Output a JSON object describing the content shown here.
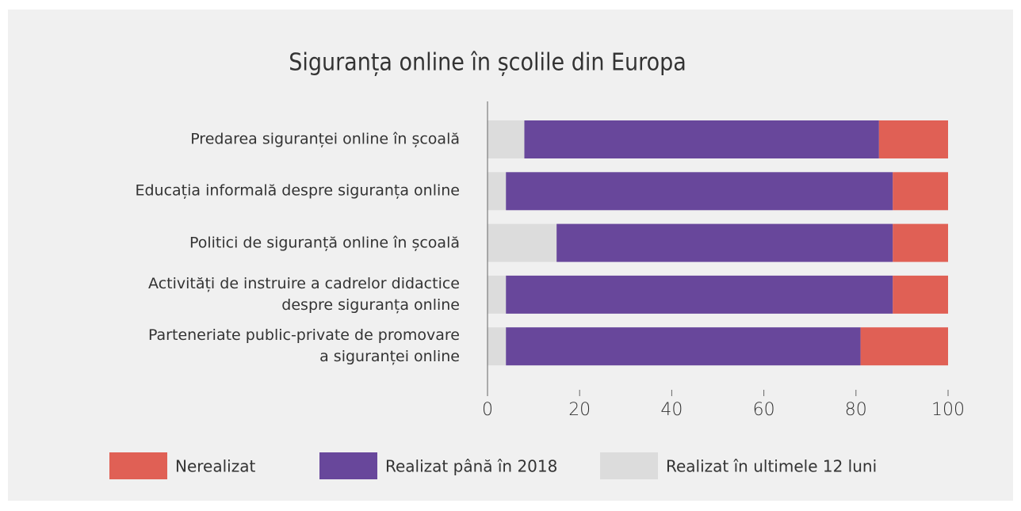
{
  "chart_data": {
    "type": "stacked_barh",
    "title": "Siguranța online în școlile din Europa",
    "categories": [
      "Predarea siguranței online în școală",
      "Educația informală despre siguranța online",
      "Politici de siguranță online în școală",
      "Activități de instruire a cadrelor didactice\ndespre siguranța online",
      "Parteneriate public-private de promovare\na siguranței online"
    ],
    "series": [
      {
        "name": "Nerealizat",
        "color": "#e06055",
        "values": [
          15,
          12,
          12,
          12,
          19
        ]
      },
      {
        "name": "Realizat până în 2018",
        "color": "#68479b",
        "values": [
          77,
          84,
          73,
          84,
          77
        ]
      },
      {
        "name": "Realizat în ultimele 12 luni",
        "color": "#dcdcdc",
        "values": [
          8,
          4,
          15,
          4,
          4
        ]
      }
    ],
    "xlim": [
      0,
      100
    ],
    "xticks": [
      0,
      20,
      40,
      60,
      80,
      100
    ]
  }
}
